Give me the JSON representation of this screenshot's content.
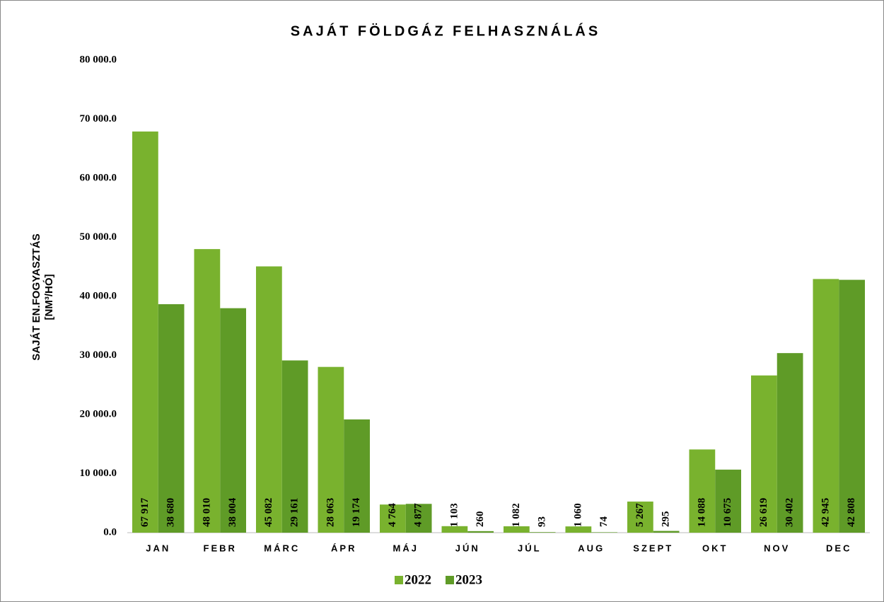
{
  "chart_data": {
    "type": "bar",
    "title": "SAJÁT FÖLDGÁZ FELHASZNÁLÁS",
    "y_label": [
      "SAJÁT EN.FOGYASZTÁS",
      "[NM³/HÓ]"
    ],
    "categories": [
      "JAN",
      "FEBR",
      "MÁRC",
      "ÁPR",
      "MÁJ",
      "JÚN",
      "JÚL",
      "AUG",
      "SZEPT",
      "OKT",
      "NOV",
      "DEC"
    ],
    "series": [
      {
        "name": "2022",
        "color": "#79b22e",
        "values": [
          67917,
          48010,
          45082,
          28063,
          4764,
          1103,
          1082,
          1060,
          5267,
          14088,
          26619,
          42945
        ],
        "value_labels": [
          "67 917",
          "48 010",
          "45 082",
          "28 063",
          "4 764",
          "1 103",
          "1 082",
          "1 060",
          "5 267",
          "14 088",
          "26 619",
          "42 945"
        ]
      },
      {
        "name": "2023",
        "color": "#5f9b27",
        "values": [
          38680,
          38004,
          29161,
          19174,
          4877,
          260,
          93,
          74,
          295,
          10675,
          30402,
          42808
        ],
        "value_labels": [
          "38 680",
          "38 004",
          "29 161",
          "19 174",
          "4 877",
          "260",
          "93",
          "74",
          "295",
          "10 675",
          "30 402",
          "42 808"
        ]
      }
    ],
    "ylim": [
      0,
      80000
    ],
    "yticks": [
      {
        "value": 0,
        "label": "0.0"
      },
      {
        "value": 10000,
        "label": "10 000.0"
      },
      {
        "value": 20000,
        "label": "20 000.0"
      },
      {
        "value": 30000,
        "label": "30 000.0"
      },
      {
        "value": 40000,
        "label": "40 000.0"
      },
      {
        "value": 50000,
        "label": "50 000.0"
      },
      {
        "value": 60000,
        "label": "60 000.0"
      },
      {
        "value": 70000,
        "label": "70 000.0"
      },
      {
        "value": 80000,
        "label": "80 000.0"
      }
    ],
    "legend": "bottom",
    "grid": false
  }
}
